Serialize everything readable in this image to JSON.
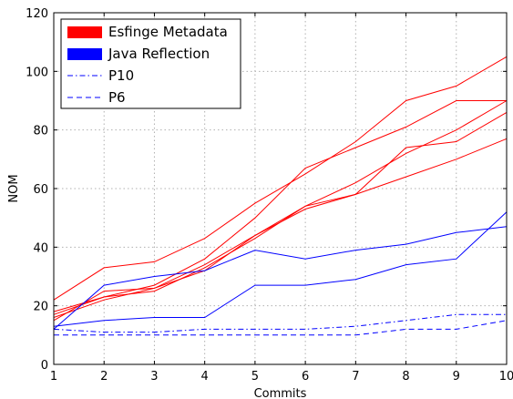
{
  "chart_data": {
    "type": "line",
    "title": "",
    "xlabel": "Commits",
    "ylabel": "NOM",
    "xlim": [
      1,
      10
    ],
    "ylim": [
      0,
      120
    ],
    "xticks": [
      1,
      2,
      3,
      4,
      5,
      6,
      7,
      8,
      9,
      10
    ],
    "yticks": [
      0,
      20,
      40,
      60,
      80,
      100,
      120
    ],
    "grid": true,
    "legend_position": "top-left",
    "x": [
      1,
      2,
      3,
      4,
      5,
      6,
      7,
      8,
      9,
      10
    ],
    "legend": [
      {
        "label": "Esfinge Metadata",
        "style": "patch",
        "color": "#ff0000"
      },
      {
        "label": "Java Reflection",
        "style": "patch",
        "color": "#0000ff"
      },
      {
        "label": "P10",
        "style": "dashdot",
        "color": "#0000ff"
      },
      {
        "label": "P6",
        "style": "dashed",
        "color": "#0000ff"
      }
    ],
    "series": [
      {
        "group": "Esfinge Metadata",
        "color": "#ff0000",
        "style": "solid",
        "values": [
          22,
          33,
          35,
          43,
          55,
          65,
          76,
          90,
          95,
          105
        ]
      },
      {
        "group": "Esfinge Metadata",
        "color": "#ff0000",
        "style": "solid",
        "values": [
          18,
          23,
          27,
          36,
          50,
          67,
          74,
          81,
          90,
          90
        ]
      },
      {
        "group": "Esfinge Metadata",
        "color": "#ff0000",
        "style": "solid",
        "values": [
          15,
          25,
          26,
          32,
          44,
          54,
          62,
          72,
          80,
          90
        ]
      },
      {
        "group": "Esfinge Metadata",
        "color": "#ff0000",
        "style": "solid",
        "values": [
          16,
          22,
          26,
          34,
          44,
          53,
          58,
          74,
          76,
          86
        ]
      },
      {
        "group": "Esfinge Metadata",
        "color": "#ff0000",
        "style": "solid",
        "values": [
          17,
          23,
          25,
          33,
          43,
          54,
          58,
          64,
          70,
          77
        ]
      },
      {
        "group": "Java Reflection",
        "color": "#0000ff",
        "style": "solid",
        "values": [
          12,
          27,
          30,
          32,
          39,
          36,
          39,
          41,
          45,
          47
        ]
      },
      {
        "group": "Java Reflection",
        "color": "#0000ff",
        "style": "solid",
        "values": [
          13,
          15,
          16,
          16,
          27,
          27,
          29,
          34,
          36,
          52
        ]
      },
      {
        "name": "P10",
        "color": "#0000ff",
        "style": "dashdot",
        "values": [
          12,
          11,
          11,
          12,
          12,
          12,
          13,
          15,
          17,
          17
        ]
      },
      {
        "name": "P6",
        "color": "#0000ff",
        "style": "dashed",
        "values": [
          10,
          10,
          10,
          10,
          10,
          10,
          10,
          12,
          12,
          15
        ]
      }
    ]
  }
}
